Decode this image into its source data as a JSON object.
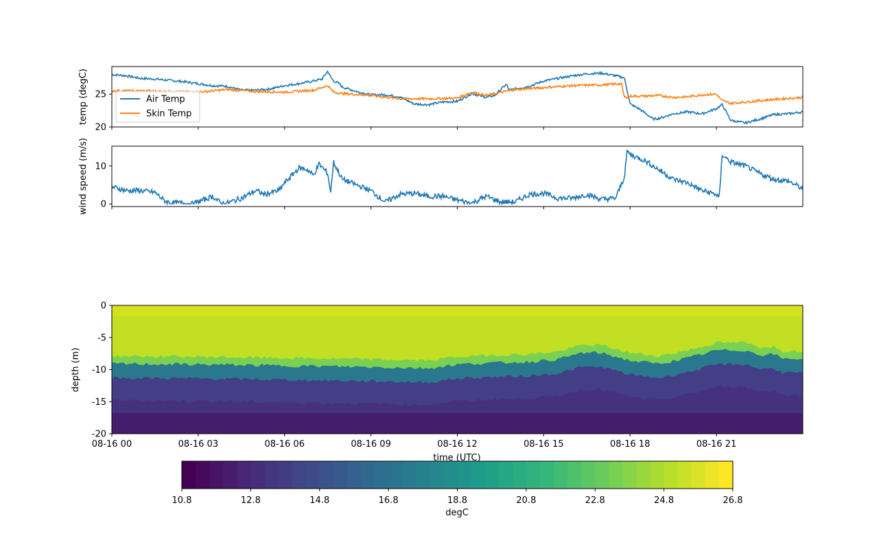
{
  "chart_data": [
    {
      "type": "line",
      "ylabel": "temp (degC)",
      "ylim": [
        20,
        29.2
      ],
      "yticks": [
        20,
        25
      ],
      "xlim": [
        0,
        24
      ],
      "legend": {
        "placement": "lower-left",
        "entries": [
          "Air Temp",
          "Skin Temp"
        ]
      },
      "series": [
        {
          "name": "Air Temp",
          "color": "#1f77b4",
          "x": [
            0,
            0.5,
            1,
            1.5,
            2,
            2.5,
            3,
            3.5,
            4,
            4.5,
            5,
            5.5,
            6,
            6.5,
            7,
            7.3,
            7.5,
            7.6,
            7.7,
            7.9,
            8,
            8.5,
            9,
            9.5,
            10,
            10.5,
            11,
            11.5,
            12,
            12.5,
            13,
            13.3,
            13.7,
            13.8,
            14,
            14.5,
            15,
            15.5,
            16,
            16.5,
            17,
            17.5,
            17.8,
            17.9,
            18,
            18.3,
            18.5,
            18.8,
            19,
            19.5,
            20,
            20.5,
            21,
            21.2,
            21.5,
            22,
            22.5,
            23,
            23.5,
            24
          ],
          "y": [
            28.0,
            27.8,
            27.4,
            27.3,
            27.1,
            26.9,
            26.6,
            26.3,
            26.2,
            25.6,
            25.6,
            25.8,
            26.3,
            26.6,
            27.0,
            27.3,
            28.5,
            27.6,
            27.0,
            26.6,
            26.1,
            25.4,
            24.9,
            24.9,
            24.6,
            23.5,
            23.4,
            23.8,
            23.9,
            25.1,
            24.5,
            24.8,
            26.5,
            25.6,
            25.8,
            26.2,
            27.0,
            27.4,
            27.8,
            28.1,
            28.2,
            27.8,
            27.5,
            25.6,
            23.5,
            22.8,
            22.2,
            21.2,
            21.3,
            22.0,
            22.3,
            22.0,
            22.8,
            23.4,
            21.0,
            20.6,
            21.2,
            21.9,
            22.0,
            22.3
          ]
        },
        {
          "name": "Skin Temp",
          "color": "#ff7f0e",
          "x": [
            0,
            1,
            2,
            3,
            4,
            5,
            6,
            7,
            7.5,
            7.7,
            8,
            9,
            10,
            11,
            12,
            12.5,
            13,
            14,
            15,
            16,
            17,
            17.7,
            17.8,
            18,
            18.5,
            19,
            19.5,
            20,
            20.5,
            21,
            21.2,
            21.5,
            22,
            23,
            24
          ],
          "y": [
            25.5,
            25.5,
            25.4,
            25.3,
            25.7,
            25.4,
            25.3,
            25.6,
            26.3,
            25.3,
            25.1,
            24.8,
            24.3,
            24.3,
            24.4,
            25.3,
            24.8,
            25.7,
            26.0,
            26.3,
            26.4,
            26.6,
            24.5,
            24.7,
            24.7,
            24.8,
            24.5,
            24.6,
            24.9,
            25.0,
            24.0,
            23.6,
            23.8,
            24.2,
            24.5
          ]
        }
      ]
    },
    {
      "type": "line",
      "ylabel": "wind speed (m/s)",
      "ylim": [
        -0.7,
        15.2
      ],
      "yticks": [
        0,
        10
      ],
      "xlim": [
        0,
        24
      ],
      "series": [
        {
          "color": "#1f77b4",
          "x": [
            0,
            0.5,
            1,
            1.5,
            1.8,
            2,
            2.5,
            2.8,
            3,
            3.5,
            3.8,
            4,
            4.5,
            5,
            5.3,
            5.8,
            6,
            6.5,
            6.8,
            7,
            7.2,
            7.5,
            7.6,
            7.7,
            7.8,
            8,
            8.5,
            9,
            9.5,
            10,
            10.5,
            11,
            11.5,
            12,
            12.5,
            13,
            13.5,
            14,
            14.5,
            15,
            15.5,
            16,
            16.5,
            17,
            17.5,
            17.8,
            17.9,
            18,
            18.5,
            19,
            19.5,
            20,
            20.5,
            21,
            21.1,
            21.2,
            21.5,
            22,
            22.5,
            23,
            23.5,
            24
          ],
          "y": [
            4.5,
            3.5,
            3.5,
            3.0,
            1.0,
            0.3,
            0.2,
            0.0,
            0.5,
            2.0,
            0.1,
            0.2,
            1.5,
            3.5,
            2.5,
            3.5,
            5.5,
            9.5,
            9.0,
            7.5,
            10.5,
            8.0,
            3.0,
            11.0,
            9.5,
            6.5,
            5.0,
            3.5,
            0.5,
            2.5,
            2.8,
            2.0,
            2.0,
            1.0,
            0.2,
            2.0,
            0.5,
            0.5,
            2.5,
            2.8,
            1.5,
            1.5,
            2.5,
            1.2,
            1.5,
            7.0,
            14.0,
            13.0,
            11.5,
            9.0,
            6.5,
            5.5,
            3.5,
            2.5,
            1.5,
            13.0,
            11.0,
            10.0,
            8.0,
            6.5,
            6.0,
            4.0
          ]
        }
      ]
    },
    {
      "type": "heatmap",
      "xlabel": "time (UTC)",
      "ylabel": "depth (m)",
      "ylim": [
        -20,
        0
      ],
      "yticks": [
        0,
        -5,
        -10,
        -15,
        -20
      ],
      "xlim": [
        0,
        24
      ],
      "xtick_values": [
        0,
        3,
        6,
        9,
        12,
        15,
        18,
        21
      ],
      "xtick_labels": [
        "08-16 00",
        "08-16 03",
        "08-16 06",
        "08-16 09",
        "08-16 12",
        "08-16 15",
        "08-16 18",
        "08-16 21"
      ],
      "thermocline": {
        "x": [
          0,
          3,
          6,
          9,
          11,
          12,
          13,
          14.5,
          15.5,
          16,
          16.3,
          17,
          18,
          19,
          20,
          20.7,
          21,
          22,
          22.5,
          23,
          23.3,
          24
        ],
        "depth": [
          -10.3,
          -10.4,
          -10.6,
          -10.8,
          -11.0,
          -10.4,
          -10.2,
          -10.0,
          -9.6,
          -9.0,
          -8.6,
          -8.6,
          -9.8,
          -10.3,
          -9.4,
          -8.6,
          -8.2,
          -8.2,
          -8.9,
          -8.8,
          -9.5,
          -9.5
        ]
      },
      "colorbar": {
        "label": "degC",
        "min": 10.8,
        "max": 26.8,
        "ticks": [
          10.8,
          12.8,
          14.8,
          16.8,
          18.8,
          20.8,
          22.8,
          24.8,
          26.8
        ],
        "tick_labels": [
          "10.8",
          "12.8",
          "14.8",
          "16.8",
          "18.8",
          "20.8",
          "22.8",
          "24.8",
          "26.8"
        ]
      }
    }
  ]
}
